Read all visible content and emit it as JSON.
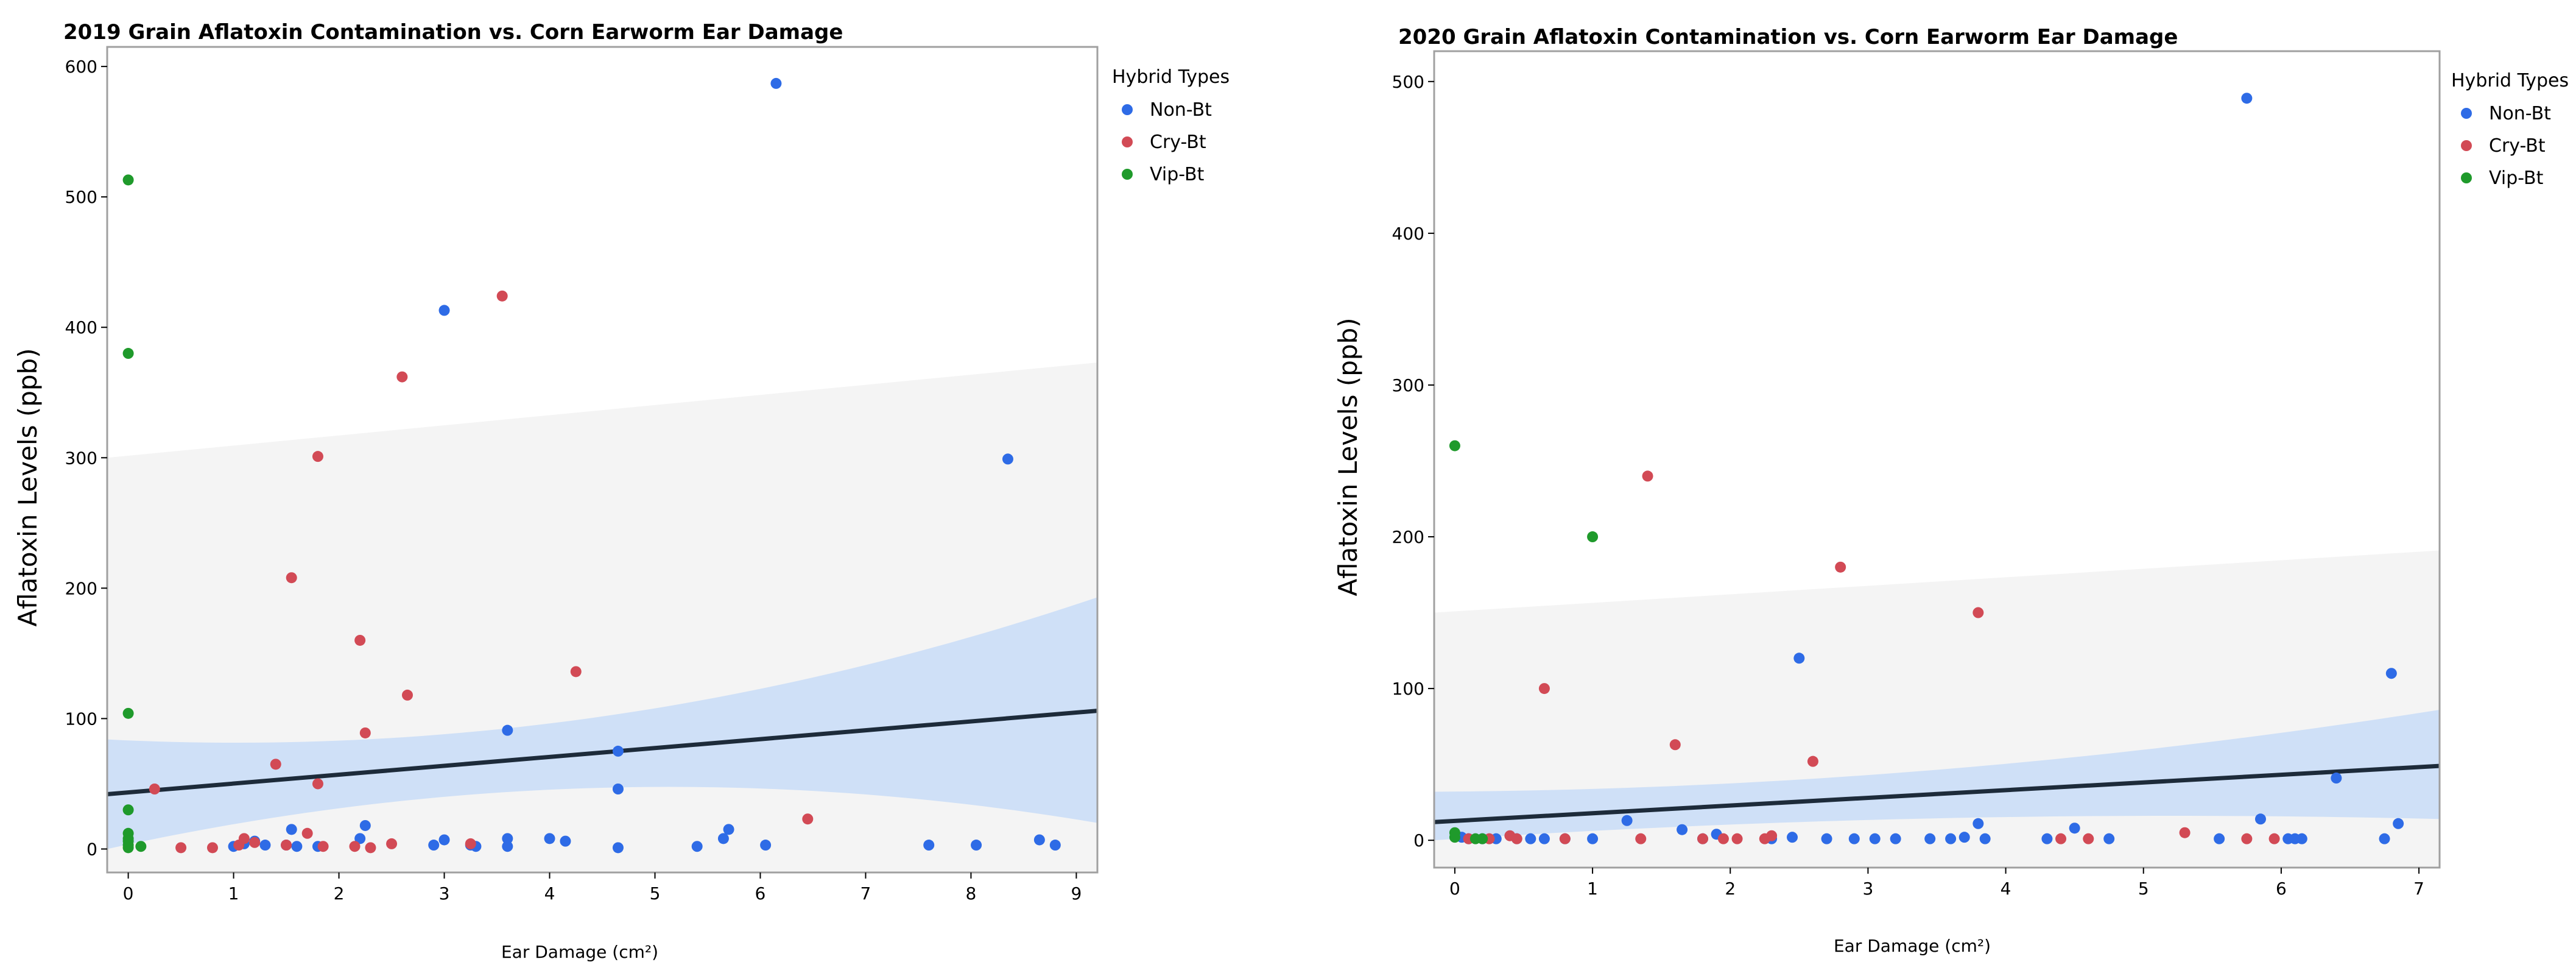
{
  "legend_title": "Hybrid Types",
  "colors": {
    "Non-Bt": "#2e6be6",
    "Cry-Bt": "#d24a55",
    "Vip-Bt": "#1f9a2b",
    "band_outer": "#f4f4f4",
    "band_inner": "#cfe0f7",
    "fit_line": "#1d2b3a",
    "frame": "#a0a0a0"
  },
  "chart_data": [
    {
      "type": "scatter",
      "title": "2019 Grain Aflatoxin Contamination vs. Corn Earworm Ear Damage",
      "xlabel": "Ear Damage (cm²)",
      "ylabel": "Aflatoxin Levels (ppb)",
      "xlim": [
        -0.2,
        9.2
      ],
      "ylim": [
        -18,
        615
      ],
      "xticks": [
        "0",
        "1",
        "2",
        "3",
        "4",
        "5",
        "6",
        "7",
        "8",
        "9"
      ],
      "yticks": [
        "0",
        "100",
        "200",
        "300",
        "400",
        "500",
        "600"
      ],
      "legend": [
        "Non-Bt",
        "Cry-Bt",
        "Vip-Bt"
      ],
      "fit": {
        "x": [
          -0.2,
          9.2
        ],
        "y": [
          42,
          106
        ]
      },
      "band_inner": {
        "x": [
          -0.2,
          3.0,
          9.2
        ],
        "upper": [
          84,
          88,
          193
        ],
        "lower": [
          0,
          40,
          20
        ]
      },
      "band_outer": {
        "x": [
          -0.2,
          9.2
        ],
        "upper": [
          300,
          373
        ],
        "lower": [
          -18,
          -18
        ]
      },
      "series": [
        {
          "name": "Non-Bt",
          "x": [
            6.15,
            3.0,
            8.35,
            3.6,
            4.65,
            4.65,
            1.55,
            2.25,
            2.2,
            1.0,
            1.1,
            1.2,
            1.3,
            1.5,
            1.6,
            1.8,
            2.9,
            3.0,
            3.25,
            3.3,
            3.6,
            3.6,
            4.0,
            4.15,
            4.65,
            5.4,
            5.65,
            5.7,
            6.05,
            7.6,
            8.05,
            8.65,
            8.8
          ],
          "y": [
            587,
            413,
            299,
            91,
            75,
            46,
            15,
            18,
            8,
            2,
            4,
            6,
            3,
            3,
            2,
            2,
            3,
            7,
            3,
            2,
            8,
            2,
            8,
            6,
            1,
            2,
            8,
            15,
            3,
            3,
            3,
            7,
            3
          ]
        },
        {
          "name": "Cry-Bt",
          "x": [
            3.55,
            2.6,
            1.8,
            1.55,
            2.2,
            4.25,
            2.65,
            2.25,
            1.4,
            1.8,
            0.25,
            6.45,
            0.5,
            0.8,
            1.05,
            1.1,
            1.2,
            1.5,
            1.7,
            1.85,
            2.15,
            2.3,
            2.5,
            3.25
          ],
          "y": [
            424,
            362,
            301,
            208,
            160,
            136,
            118,
            89,
            65,
            50,
            46,
            23,
            1,
            1,
            3,
            8,
            5,
            3,
            12,
            2,
            2,
            1,
            4,
            4
          ]
        },
        {
          "name": "Vip-Bt",
          "x": [
            0,
            0,
            0,
            0,
            0,
            0,
            0,
            0,
            0,
            0.12
          ],
          "y": [
            513,
            380,
            104,
            30,
            12,
            8,
            6,
            3,
            1,
            2
          ]
        }
      ]
    },
    {
      "type": "scatter",
      "title": "2020 Grain Aflatoxin Contamination vs. Corn Earworm Ear Damage",
      "xlabel": "Ear Damage (cm²)",
      "ylabel": "Aflatoxin Levels (ppb)",
      "xlim": [
        -0.15,
        7.15
      ],
      "ylim": [
        -18,
        520
      ],
      "xticks": [
        "0",
        "1",
        "2",
        "3",
        "4",
        "5",
        "6",
        "7"
      ],
      "yticks": [
        "0",
        "100",
        "200",
        "300",
        "400",
        "500"
      ],
      "legend": [
        "Non-Bt",
        "Cry-Bt",
        "Vip-Bt"
      ],
      "fit": {
        "x": [
          -0.15,
          7.15
        ],
        "y": [
          12,
          49
        ]
      },
      "band_inner": {
        "x": [
          -0.15,
          2.5,
          7.15
        ],
        "upper": [
          32,
          40,
          86
        ],
        "lower": [
          0,
          12,
          14
        ]
      },
      "band_outer": {
        "x": [
          -0.15,
          7.15
        ],
        "upper": [
          150,
          191
        ],
        "lower": [
          -18,
          -18
        ]
      },
      "series": [
        {
          "name": "Non-Bt",
          "x": [
            5.75,
            6.8,
            2.5,
            6.4,
            5.85,
            1.25,
            1.65,
            1.9,
            2.45,
            3.8,
            4.5,
            6.85,
            0.05,
            0.1,
            0.2,
            0.3,
            0.45,
            0.55,
            0.65,
            0.8,
            1.0,
            1.8,
            2.3,
            2.7,
            2.9,
            3.05,
            3.2,
            3.45,
            3.6,
            3.7,
            3.85,
            4.3,
            4.75,
            5.55,
            6.05,
            6.1,
            6.15,
            6.75
          ],
          "y": [
            489,
            110,
            120,
            41,
            14,
            13,
            7,
            4,
            2,
            11,
            8,
            11,
            2,
            1,
            1,
            1,
            1,
            1,
            1,
            1,
            1,
            1,
            1,
            1,
            1,
            1,
            1,
            1,
            1,
            2,
            1,
            1,
            1,
            1,
            1,
            1,
            1,
            1
          ]
        },
        {
          "name": "Cry-Bt",
          "x": [
            1.4,
            2.8,
            3.8,
            0.65,
            1.6,
            2.6,
            5.3,
            0.1,
            0.25,
            0.4,
            0.45,
            0.8,
            1.35,
            1.8,
            1.95,
            2.05,
            2.25,
            2.3,
            4.4,
            4.6,
            5.75,
            5.95
          ],
          "y": [
            240,
            180,
            150,
            100,
            63,
            52,
            5,
            1,
            1,
            3,
            1,
            1,
            1,
            1,
            1,
            1,
            1,
            3,
            1,
            1,
            1,
            1
          ]
        },
        {
          "name": "Vip-Bt",
          "x": [
            0,
            1.0,
            0,
            0,
            0.15,
            0.2
          ],
          "y": [
            260,
            200,
            5,
            2,
            1,
            1
          ]
        }
      ]
    }
  ]
}
